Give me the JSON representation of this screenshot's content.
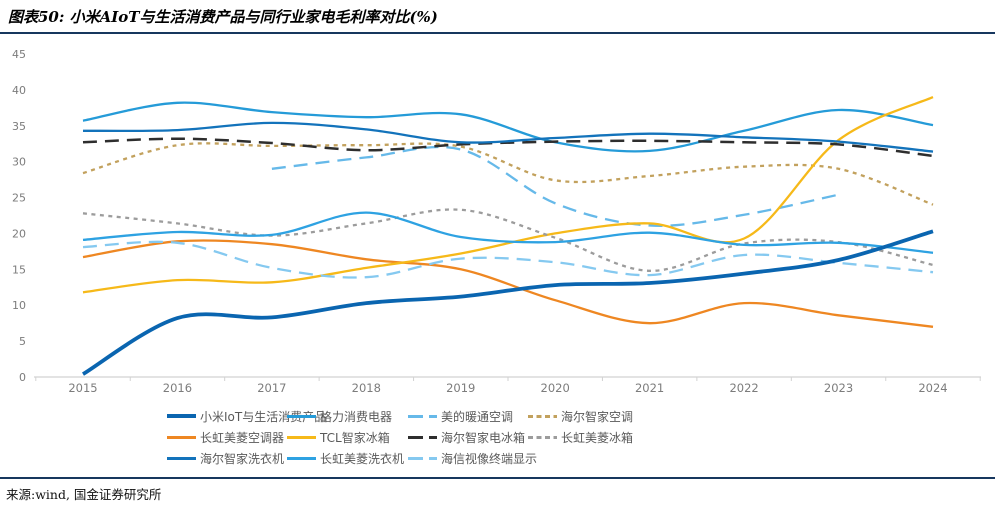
{
  "title": "图表50: 小米AIoT与生活消费产品与同行业家电毛利率对比(%)",
  "source": "来源:wind, 国金证券研究所",
  "accent_rule_color": "#17375E",
  "axis": {
    "tick_label_color": "#7C7C7C",
    "axis_line_color": "#D2D2D2",
    "y_ticks": [
      0,
      5,
      10,
      15,
      20,
      25,
      30,
      35,
      40,
      45
    ]
  },
  "chart_data": {
    "type": "line",
    "x": [
      2015,
      2016,
      2017,
      2018,
      2019,
      2020,
      2021,
      2022,
      2023,
      2024
    ],
    "ylim": [
      0,
      45
    ],
    "ytick_step": 5,
    "grid": false,
    "legend_position": "bottom",
    "legend_cols": [
      167,
      287,
      408,
      528
    ],
    "legend_rows": [
      [
        0,
        1,
        2,
        3
      ],
      [
        4,
        5,
        6,
        7
      ],
      [
        8,
        9,
        10
      ]
    ],
    "series": [
      {
        "name": "小米IoT与生活消费产品",
        "color": "#0A65B0",
        "style": "solid",
        "width": 3.8,
        "values": [
          0.4,
          8.2,
          8.3,
          10.3,
          11.2,
          12.8,
          13.1,
          14.4,
          16.3,
          20.3
        ]
      },
      {
        "name": "格力消费电器",
        "color": "#259BD8",
        "style": "solid",
        "width": 2.3,
        "values": [
          35.7,
          38.2,
          36.9,
          36.2,
          36.6,
          32.7,
          31.5,
          34.3,
          37.2,
          35.1
        ]
      },
      {
        "name": "美的暖通空调",
        "color": "#66B9E9",
        "style": "long-dash",
        "width": 2.3,
        "values": [
          null,
          null,
          29.0,
          30.6,
          31.7,
          24.2,
          21.1,
          22.6,
          25.4,
          null
        ]
      },
      {
        "name": "海尔智家空调",
        "color": "#C2A15D",
        "style": "short-dash",
        "width": 2.3,
        "values": [
          28.4,
          32.3,
          32.2,
          32.3,
          32.1,
          27.4,
          28.0,
          29.3,
          29.0,
          24.0
        ]
      },
      {
        "name": "长虹美菱空调器",
        "color": "#EE8722",
        "style": "solid",
        "width": 2.3,
        "values": [
          16.7,
          18.9,
          18.5,
          16.4,
          15.0,
          10.7,
          7.5,
          10.3,
          8.6,
          7.0
        ]
      },
      {
        "name": "TCL智家冰箱",
        "color": "#F6B919",
        "style": "solid",
        "width": 2.3,
        "values": [
          11.8,
          13.5,
          13.2,
          15.2,
          17.2,
          20.0,
          21.4,
          19.3,
          33.0,
          39.0
        ]
      },
      {
        "name": "海尔智家电冰箱",
        "color": "#2E2E2E",
        "style": "long-dash",
        "width": 2.5,
        "values": [
          32.7,
          33.2,
          32.6,
          31.6,
          32.4,
          32.8,
          32.9,
          32.7,
          32.4,
          30.8
        ]
      },
      {
        "name": "长虹美菱冰箱",
        "color": "#9C9C9C",
        "style": "short-dash",
        "width": 2.3,
        "values": [
          22.8,
          21.4,
          19.7,
          21.4,
          23.3,
          19.4,
          14.8,
          18.6,
          18.8,
          15.6
        ]
      },
      {
        "name": "海尔智家洗衣机",
        "color": "#1373BB",
        "style": "solid",
        "width": 2.3,
        "values": [
          34.3,
          34.4,
          35.4,
          34.5,
          32.7,
          33.3,
          33.9,
          33.4,
          32.8,
          31.4
        ]
      },
      {
        "name": "长虹美菱洗衣机",
        "color": "#2EA2E2",
        "style": "solid",
        "width": 2.3,
        "values": [
          19.1,
          20.2,
          19.8,
          22.9,
          19.5,
          18.8,
          20.1,
          18.4,
          18.7,
          17.3
        ]
      },
      {
        "name": "海信视像终端显示",
        "color": "#85C9F0",
        "style": "long-dash",
        "width": 2.3,
        "values": [
          18.1,
          18.7,
          15.2,
          13.9,
          16.5,
          16.0,
          14.2,
          17.0,
          15.9,
          14.6
        ]
      }
    ]
  }
}
